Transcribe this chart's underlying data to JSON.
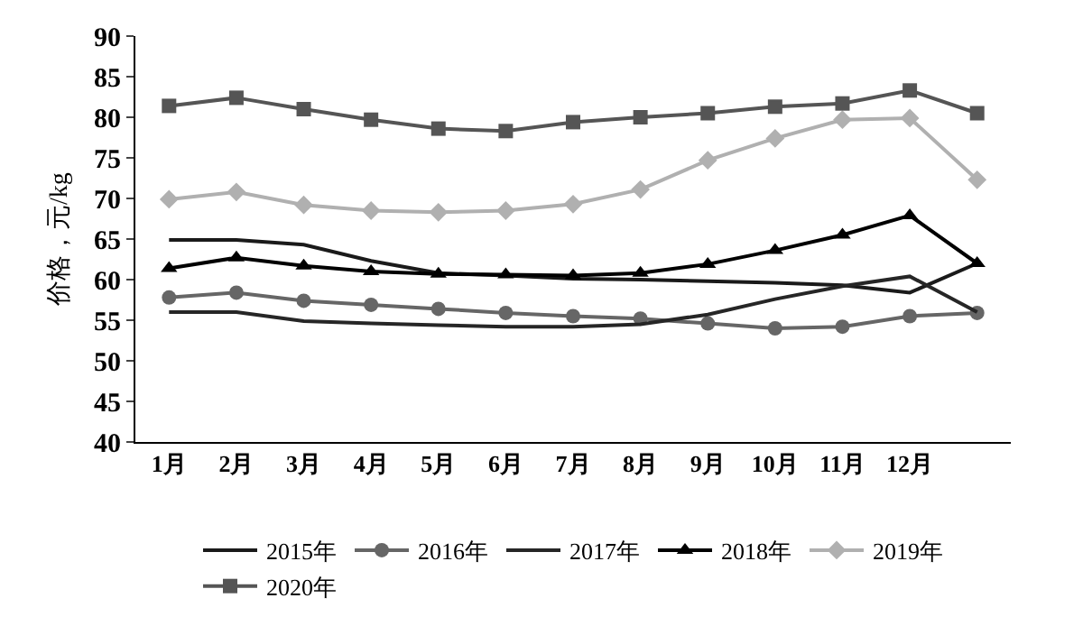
{
  "chart_data": {
    "type": "line",
    "ylabel": "价格，元/kg",
    "categories": [
      "1月",
      "2月",
      "3月",
      "4月",
      "5月",
      "6月",
      "7月",
      "8月",
      "9月",
      "10月",
      "11月",
      "12月",
      null
    ],
    "ylim": [
      40,
      90
    ],
    "yticks": [
      40,
      45,
      50,
      55,
      60,
      65,
      70,
      75,
      80,
      85,
      90
    ],
    "grid": false,
    "legend": "bottom",
    "series": [
      {
        "name": "2015年",
        "color": "#1a1a1a",
        "marker": "none",
        "values": [
          64.9,
          64.9,
          64.3,
          62.3,
          60.8,
          60.5,
          60.1,
          60.0,
          59.8,
          59.6,
          59.3,
          58.4,
          62.0
        ]
      },
      {
        "name": "2016年",
        "color": "#666666",
        "marker": "circle",
        "values": [
          57.8,
          58.4,
          57.4,
          56.9,
          56.4,
          55.9,
          55.5,
          55.2,
          54.6,
          54.0,
          54.2,
          55.5,
          55.9
        ]
      },
      {
        "name": "2017年",
        "color": "#262626",
        "marker": "none",
        "values": [
          56.0,
          56.0,
          54.9,
          54.6,
          54.4,
          54.2,
          54.2,
          54.5,
          55.7,
          57.6,
          59.2,
          60.4,
          56.0
        ]
      },
      {
        "name": "2018年",
        "color": "#000000",
        "marker": "triangle",
        "values": [
          61.4,
          62.7,
          61.7,
          61.0,
          60.7,
          60.6,
          60.5,
          60.8,
          61.9,
          63.6,
          65.5,
          67.9,
          62.0
        ]
      },
      {
        "name": "2019年",
        "color": "#b0b0b0",
        "marker": "diamond",
        "values": [
          69.9,
          70.8,
          69.2,
          68.5,
          68.3,
          68.5,
          69.3,
          71.1,
          74.7,
          77.4,
          79.7,
          79.9,
          72.3
        ]
      },
      {
        "name": "2020年",
        "color": "#555555",
        "marker": "square",
        "values": [
          81.4,
          82.4,
          81.0,
          79.7,
          78.6,
          78.3,
          79.4,
          80.0,
          80.5,
          81.3,
          81.7,
          83.3,
          80.5
        ]
      }
    ]
  }
}
